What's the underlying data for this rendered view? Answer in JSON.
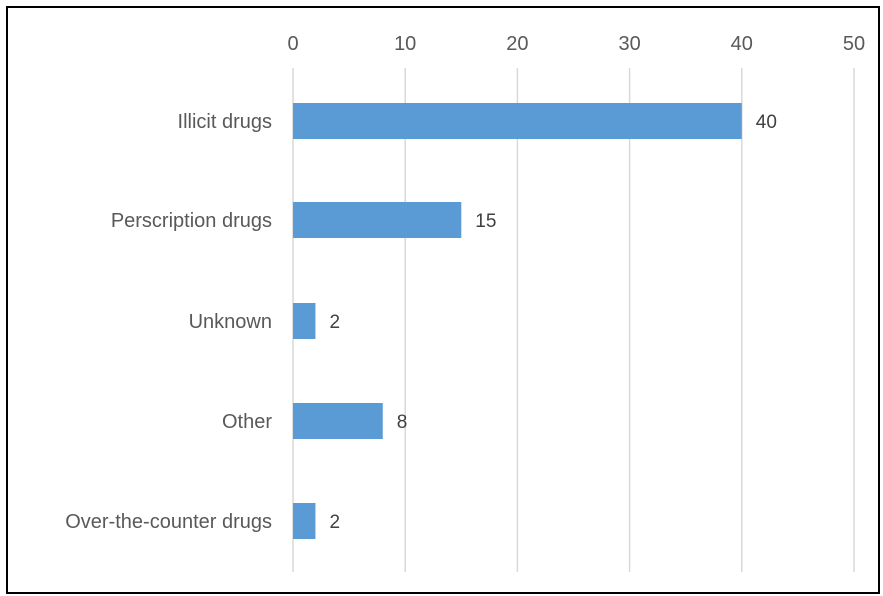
{
  "chart_data": {
    "type": "bar",
    "orientation": "horizontal",
    "title": "",
    "xlabel": "",
    "ylabel": "",
    "categories": [
      "Illicit drugs",
      "Perscription drugs",
      "Unknown",
      "Other",
      "Over-the-counter drugs"
    ],
    "values": [
      40,
      15,
      2,
      8,
      2
    ],
    "xlim": [
      0,
      50
    ],
    "xticks": [
      0,
      10,
      20,
      30,
      40,
      50
    ],
    "x_axis_position": "top",
    "grid": true,
    "legend": "none",
    "data_labels": true,
    "bar_color": "#5B9BD5",
    "grid_color": "#D9D9D9"
  }
}
